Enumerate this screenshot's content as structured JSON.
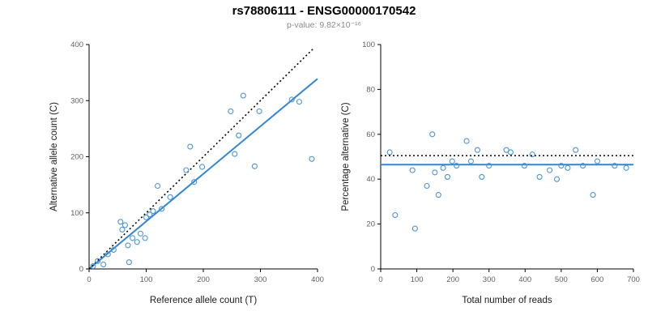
{
  "header": {
    "title": "rs78806111 - ENSG00000170542",
    "subtitle": "p-value: 9.82×10⁻¹⁶"
  },
  "colors": {
    "point": "#4a94d4",
    "line": "#2e86d5",
    "identity": "#000000",
    "axis": "#000000",
    "tick_label": "#606060",
    "axis_label": "#1a1a1a"
  },
  "chart_data": [
    {
      "type": "scatter",
      "xlabel": "Reference allele count (T)",
      "ylabel": "Alternative allele count (C)",
      "xlim": [
        0,
        400
      ],
      "ylim": [
        0,
        400
      ],
      "xticks": [
        0,
        100,
        200,
        300,
        400
      ],
      "yticks": [
        0,
        100,
        200,
        300,
        400
      ],
      "grid": false,
      "points": [
        [
          7,
          5
        ],
        [
          15,
          14
        ],
        [
          25,
          8
        ],
        [
          33,
          26
        ],
        [
          43,
          34
        ],
        [
          55,
          84
        ],
        [
          58,
          70
        ],
        [
          63,
          78
        ],
        [
          68,
          42
        ],
        [
          70,
          12
        ],
        [
          76,
          55
        ],
        [
          84,
          48
        ],
        [
          90,
          63
        ],
        [
          98,
          55
        ],
        [
          100,
          92
        ],
        [
          106,
          97
        ],
        [
          112,
          103
        ],
        [
          120,
          148
        ],
        [
          127,
          107
        ],
        [
          142,
          128
        ],
        [
          170,
          176
        ],
        [
          177,
          218
        ],
        [
          184,
          155
        ],
        [
          198,
          182
        ],
        [
          248,
          281
        ],
        [
          255,
          205
        ],
        [
          262,
          238
        ],
        [
          270,
          309
        ],
        [
          290,
          183
        ],
        [
          298,
          281
        ],
        [
          355,
          302
        ],
        [
          368,
          298
        ],
        [
          390,
          196
        ]
      ],
      "lines": [
        {
          "x1": 0,
          "y1": 0,
          "x2": 400,
          "y2": 339,
          "style": "solid",
          "color": "line",
          "width": 2
        },
        {
          "x1": 0,
          "y1": 0,
          "x2": 393,
          "y2": 393,
          "style": "dotted",
          "color": "identity",
          "width": 1.6
        }
      ]
    },
    {
      "type": "scatter",
      "xlabel": "Total number of reads",
      "ylabel": "Percentage alternative (C)",
      "xlim": [
        0,
        700
      ],
      "ylim": [
        0,
        100
      ],
      "xticks": [
        0,
        100,
        200,
        300,
        400,
        500,
        600,
        700
      ],
      "yticks": [
        0,
        20,
        40,
        60,
        80,
        100
      ],
      "grid": false,
      "points": [
        [
          25,
          52
        ],
        [
          40,
          24
        ],
        [
          88,
          44
        ],
        [
          95,
          18
        ],
        [
          128,
          37
        ],
        [
          143,
          60
        ],
        [
          150,
          43
        ],
        [
          160,
          33
        ],
        [
          173,
          45
        ],
        [
          185,
          41
        ],
        [
          198,
          48
        ],
        [
          210,
          46
        ],
        [
          238,
          57
        ],
        [
          250,
          48
        ],
        [
          268,
          53
        ],
        [
          280,
          41
        ],
        [
          300,
          46
        ],
        [
          348,
          53
        ],
        [
          360,
          52
        ],
        [
          398,
          46
        ],
        [
          420,
          51
        ],
        [
          440,
          41
        ],
        [
          468,
          44
        ],
        [
          488,
          40
        ],
        [
          500,
          46
        ],
        [
          518,
          45
        ],
        [
          540,
          53
        ],
        [
          560,
          46
        ],
        [
          588,
          33
        ],
        [
          600,
          48
        ],
        [
          648,
          46
        ],
        [
          680,
          45
        ]
      ],
      "lines": [
        {
          "x1": 0,
          "y1": 46.5,
          "x2": 700,
          "y2": 46.5,
          "style": "solid",
          "color": "line",
          "width": 2
        },
        {
          "x1": 0,
          "y1": 50.5,
          "x2": 700,
          "y2": 50.5,
          "style": "dotted",
          "color": "identity",
          "width": 1.6
        }
      ]
    }
  ]
}
